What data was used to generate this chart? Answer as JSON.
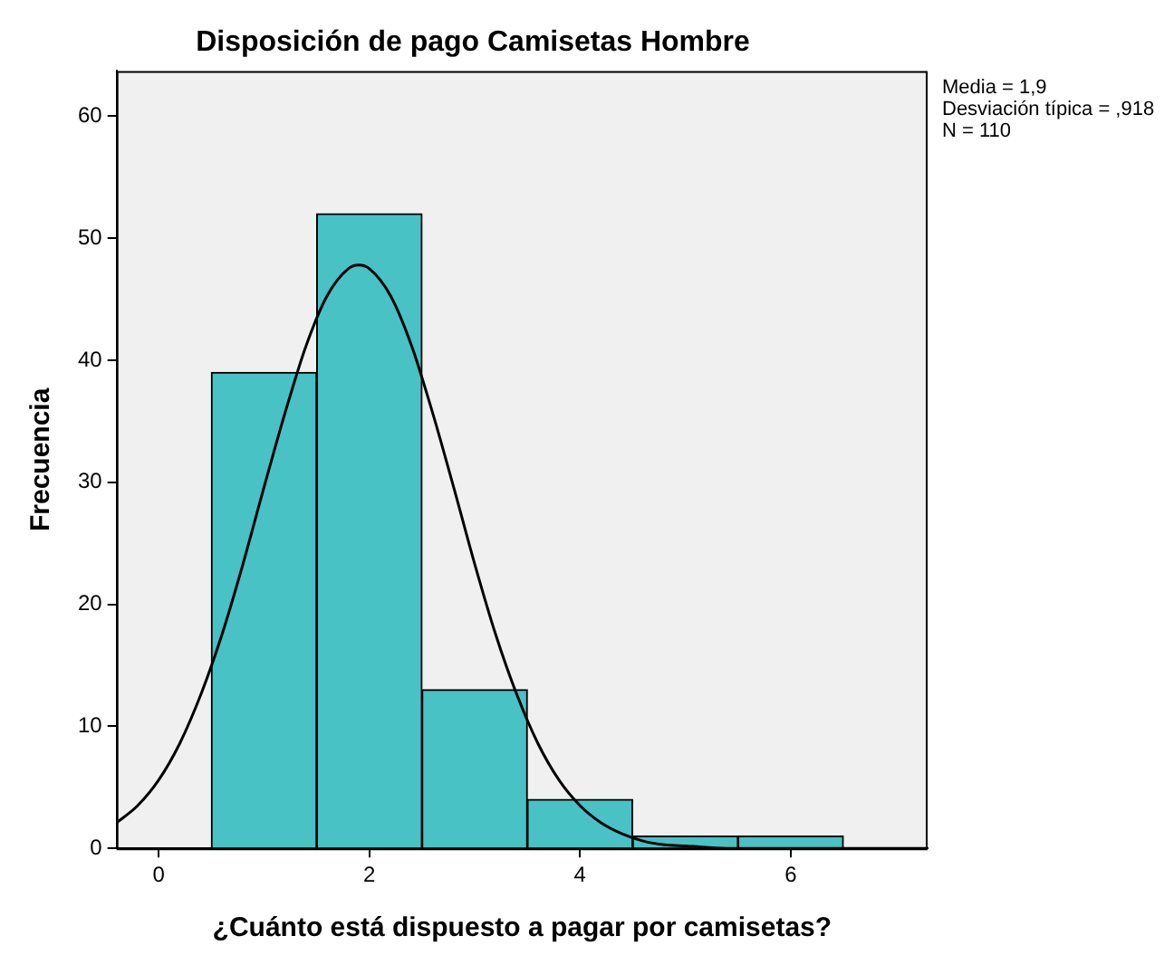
{
  "chart_data": {
    "type": "histogram",
    "title": "Disposición de pago Camisetas Hombre",
    "xlabel": "¿Cuánto está dispuesto a pagar por camisetas?",
    "ylabel": "Frecuencia",
    "bins": [
      0.5,
      1.5,
      2.5,
      3.5,
      4.5,
      5.5,
      6.5
    ],
    "values": [
      39,
      52,
      13,
      4,
      1,
      1
    ],
    "color": "#48c2c5",
    "series": [
      {
        "type": "line",
        "color": "#000000",
        "x": [
          -0.4,
          -0.2,
          0,
          0.2,
          0.4,
          0.6,
          0.8,
          1.0,
          1.2,
          1.4,
          1.6,
          1.8,
          1.9,
          2.0,
          2.2,
          2.4,
          2.6,
          2.8,
          3.0,
          3.2,
          3.4,
          3.6,
          3.8,
          4.0,
          4.2,
          4.4,
          4.6,
          4.8,
          5.0,
          5.4,
          6.0,
          7.3
        ],
        "values": [
          2.1,
          3.5,
          5.6,
          8.6,
          12.6,
          17.5,
          23.3,
          29.6,
          35.7,
          41.2,
          45.3,
          47.5,
          47.8,
          47.5,
          45.3,
          41.2,
          35.7,
          29.6,
          23.3,
          17.5,
          12.6,
          8.6,
          5.6,
          3.5,
          2.1,
          1.2,
          0.6,
          0.3,
          0.2,
          0,
          0,
          0
        ]
      }
    ],
    "xlim": [
      -0.4,
      7.3
    ],
    "xticks": [
      0,
      2,
      4,
      6
    ],
    "ylim": [
      0,
      63.7
    ],
    "yticks": [
      0,
      10,
      20,
      30,
      40,
      50,
      60
    ],
    "annotations": [
      "Media = 1,9",
      "Desviación típica = ,918",
      "N = 110"
    ],
    "grid": false,
    "legend": false,
    "marker": "none",
    "line_style": "solid"
  }
}
